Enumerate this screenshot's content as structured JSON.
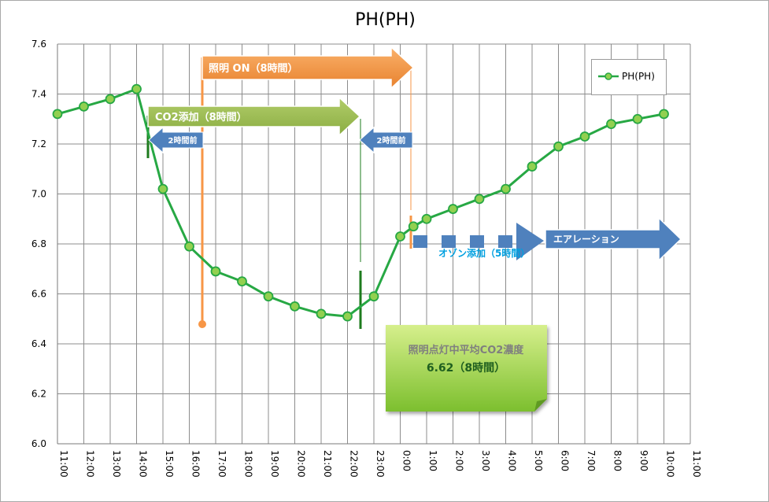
{
  "chart_data": {
    "type": "line",
    "title": "PH(PH)",
    "ylim": [
      6.0,
      7.6
    ],
    "yticks": [
      "6.0",
      "6.2",
      "6.4",
      "6.6",
      "6.8",
      "7.0",
      "7.2",
      "7.4",
      "7.6"
    ],
    "categories": [
      "11:00",
      "12:00",
      "13:00",
      "14:00",
      "15:00",
      "16:00",
      "17:00",
      "18:00",
      "19:00",
      "20:00",
      "21:00",
      "22:00",
      "23:00",
      "0:00",
      "1:00",
      "2:00",
      "3:00",
      "4:00",
      "5:00",
      "6:00",
      "7:00",
      "8:00",
      "9:00",
      "10:00",
      "11:00"
    ],
    "series": [
      {
        "name": "PH(PH)",
        "color": "#27a844",
        "marker_fill": "#92d050",
        "points": [
          {
            "x": 0,
            "y": 7.32
          },
          {
            "x": 1,
            "y": 7.35
          },
          {
            "x": 2,
            "y": 7.38
          },
          {
            "x": 3,
            "y": 7.42
          },
          {
            "x": 4,
            "y": 7.02
          },
          {
            "x": 5,
            "y": 6.79
          },
          {
            "x": 6,
            "y": 6.69
          },
          {
            "x": 7,
            "y": 6.65
          },
          {
            "x": 8,
            "y": 6.59
          },
          {
            "x": 9,
            "y": 6.55
          },
          {
            "x": 10,
            "y": 6.52
          },
          {
            "x": 11,
            "y": 6.51
          },
          {
            "x": 12,
            "y": 6.59
          },
          {
            "x": 13,
            "y": 6.83
          },
          {
            "x": 13.5,
            "y": 6.87
          },
          {
            "x": 14,
            "y": 6.9
          },
          {
            "x": 15,
            "y": 6.94
          },
          {
            "x": 16,
            "y": 6.98
          },
          {
            "x": 17,
            "y": 7.02
          },
          {
            "x": 18,
            "y": 7.11
          },
          {
            "x": 19,
            "y": 7.19
          },
          {
            "x": 20,
            "y": 7.23
          },
          {
            "x": 21,
            "y": 7.28
          },
          {
            "x": 22,
            "y": 7.3
          },
          {
            "x": 23,
            "y": 7.32
          }
        ]
      }
    ],
    "grid": true,
    "legend": {
      "position": "top-right",
      "label": "PH(PH)"
    },
    "annotations": {
      "lighting": {
        "label": "照明 ON（8時間）",
        "color": "#f79646"
      },
      "co2": {
        "label": "CO2添加（8時間）",
        "color": "#9bbb59"
      },
      "before_left": "2時間前",
      "before_right": "2時間前",
      "ozone": "オゾン添加（5時間）",
      "aeration": "エアレーション",
      "avg_title": "照明点灯中平均CO2濃度",
      "avg_value": "6.62（8時間）"
    }
  }
}
